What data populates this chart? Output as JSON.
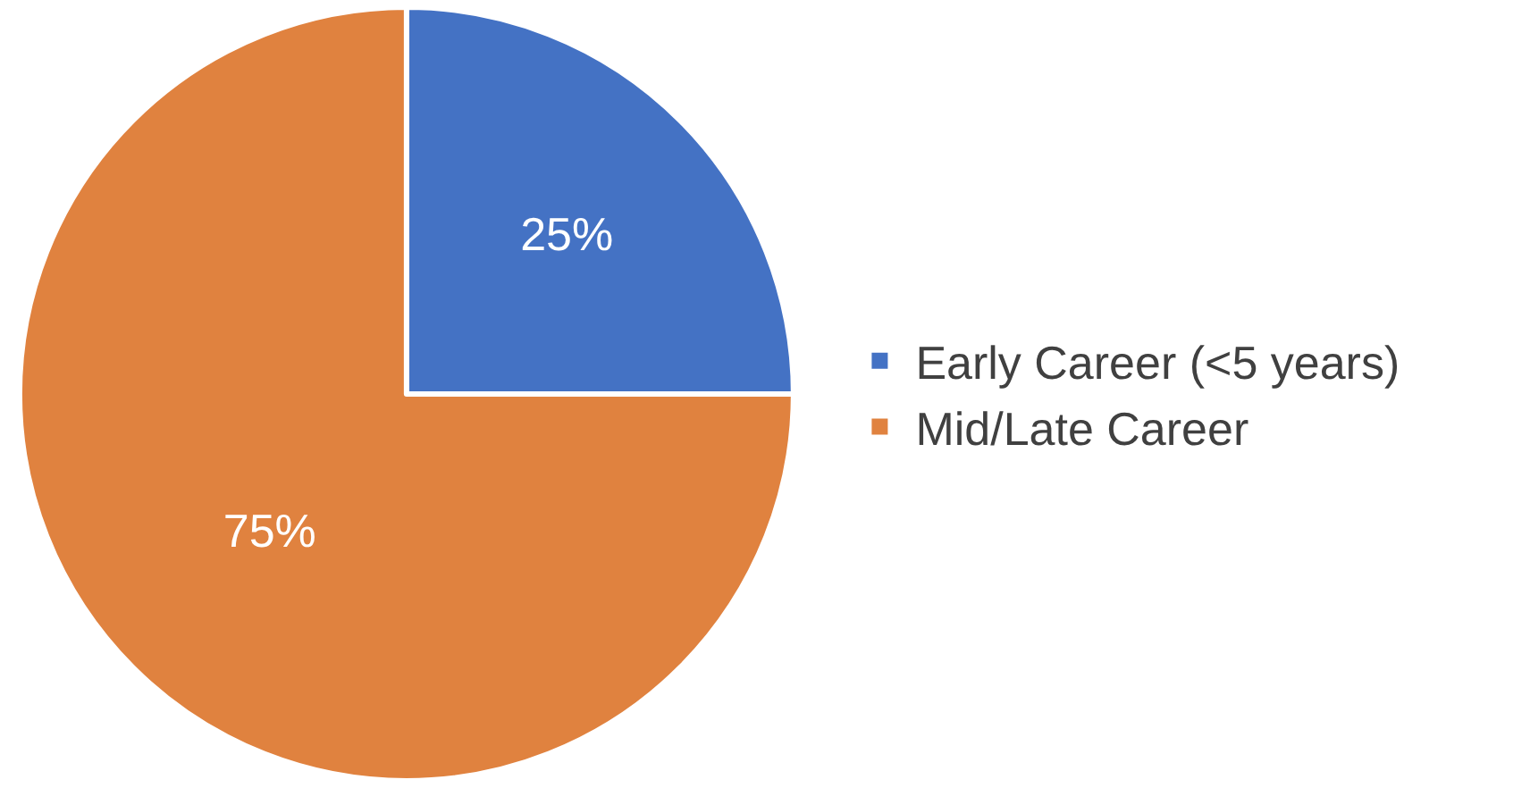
{
  "chart_data": {
    "type": "pie",
    "categories": [
      "Early Career (<5 years)",
      "Mid/Late Career"
    ],
    "values": [
      25,
      75
    ],
    "colors": [
      "#4472c4",
      "#e0823f"
    ],
    "value_labels": [
      "25%",
      "75%"
    ],
    "legend": "right"
  }
}
